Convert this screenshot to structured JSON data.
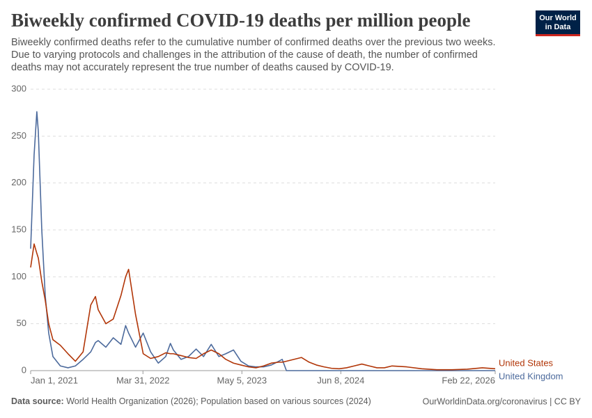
{
  "chart_data": {
    "type": "line",
    "title": "Biweekly confirmed COVID-19 deaths per million people",
    "subtitle": [
      "Biweekly confirmed deaths refer to the cumulative number of confirmed deaths over the previous two weeks.",
      "Due to varying protocols and challenges in the attribution of the cause of death, the number of confirmed",
      "deaths may not accurately represent the true number of deaths caused by COVID-19."
    ],
    "logo": [
      "Our World",
      "in Data"
    ],
    "source_label": "Data source:",
    "source": "World Health Organization (2026); Population based on various sources (2024)",
    "footer_right": "OurWorldinData.org/coronavirus | CC BY",
    "x": [
      "2021-01-01",
      "2021-01-15",
      "2021-01-26",
      "2021-02-01",
      "2021-02-15",
      "2021-03-01",
      "2021-03-15",
      "2021-04-01",
      "2021-05-01",
      "2021-06-01",
      "2021-07-01",
      "2021-08-01",
      "2021-09-01",
      "2021-09-20",
      "2021-10-01",
      "2021-11-01",
      "2021-12-01",
      "2022-01-01",
      "2022-01-20",
      "2022-02-01",
      "2022-03-01",
      "2022-04-01",
      "2022-05-01",
      "2022-06-01",
      "2022-07-01",
      "2022-07-20",
      "2022-08-01",
      "2022-09-01",
      "2022-10-01",
      "2022-11-01",
      "2022-12-01",
      "2023-01-01",
      "2023-02-01",
      "2023-03-01",
      "2023-04-01",
      "2023-05-01",
      "2023-06-01",
      "2023-07-01",
      "2023-08-01",
      "2023-09-01",
      "2023-10-01",
      "2023-10-15",
      "2023-11-01",
      "2023-12-01",
      "2024-01-01",
      "2024-02-01",
      "2024-03-01",
      "2024-04-01",
      "2024-05-01",
      "2024-06-01",
      "2024-07-01",
      "2024-08-01",
      "2024-09-01",
      "2024-10-01",
      "2024-11-01",
      "2024-12-01",
      "2025-01-01",
      "2025-03-01",
      "2025-05-01",
      "2025-07-01",
      "2025-09-01",
      "2025-11-01",
      "2026-01-01",
      "2026-02-22"
    ],
    "series": [
      {
        "name": "United States",
        "color": "#b13507",
        "values": [
          110,
          135,
          125,
          120,
          95,
          75,
          50,
          33,
          27,
          18,
          10,
          20,
          70,
          79,
          65,
          50,
          55,
          80,
          100,
          108,
          60,
          18,
          13,
          15,
          19,
          18,
          18,
          16,
          14,
          13,
          18,
          22,
          18,
          12,
          8,
          6,
          4,
          3,
          5,
          8,
          9,
          9,
          10,
          12,
          14,
          9,
          6,
          4,
          2.5,
          2,
          3,
          5,
          7,
          5,
          3,
          3,
          5,
          4,
          2,
          1,
          1,
          1.5,
          3,
          2
        ]
      },
      {
        "name": "United Kingdom",
        "color": "#4c6a9c",
        "values": [
          130,
          230,
          276,
          255,
          150,
          80,
          40,
          15,
          5,
          3,
          5,
          12,
          20,
          30,
          32,
          25,
          35,
          28,
          48,
          40,
          25,
          40,
          20,
          8,
          15,
          29,
          22,
          12,
          15,
          23,
          15,
          28,
          15,
          18,
          22,
          10,
          5,
          4,
          4,
          6,
          10,
          12,
          0,
          0,
          0,
          0,
          0,
          0,
          0,
          0,
          0,
          0,
          0,
          0,
          0,
          0,
          0,
          0,
          0,
          0,
          0,
          0,
          0,
          0
        ]
      }
    ],
    "xlim": [
      "2021-01-01",
      "2026-02-22"
    ],
    "xticks": [
      {
        "value": "2021-01-01",
        "label": "Jan 1, 2021"
      },
      {
        "value": "2022-03-31",
        "label": "Mar 31, 2022"
      },
      {
        "value": "2023-05-05",
        "label": "May 5, 2023"
      },
      {
        "value": "2024-06-08",
        "label": "Jun 8, 2024"
      },
      {
        "value": "2026-02-22",
        "label": "Feb 22, 2026"
      }
    ],
    "ylim": [
      0,
      300
    ],
    "yticks": [
      0,
      50,
      100,
      150,
      200,
      250,
      300
    ],
    "grid": true
  }
}
